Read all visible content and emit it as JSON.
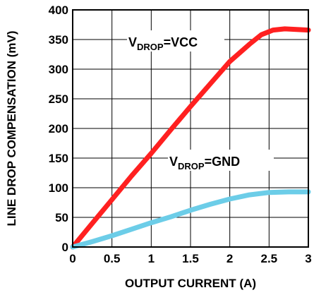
{
  "chart_data": {
    "type": "line",
    "title": "",
    "xlabel": "OUTPUT CURRENT (A)",
    "ylabel": "LINE DROP COMPENSATION (mV)",
    "xlim": [
      0,
      3
    ],
    "ylim": [
      0,
      400
    ],
    "x_ticks": [
      "0",
      "0.5",
      "1",
      "1.5",
      "2",
      "2.5",
      "3"
    ],
    "y_ticks": [
      "0",
      "50",
      "100",
      "150",
      "200",
      "250",
      "300",
      "350",
      "400"
    ],
    "grid": true,
    "series": [
      {
        "name": "VDROP=VCC",
        "color": "#ff2020",
        "x": [
          0,
          0.25,
          0.5,
          0.75,
          1.0,
          1.25,
          1.5,
          1.75,
          2.0,
          2.25,
          2.4,
          2.55,
          2.7,
          2.85,
          3.0
        ],
        "y": [
          0,
          40,
          80,
          120,
          158,
          198,
          237,
          275,
          313,
          342,
          358,
          366,
          368,
          367,
          366
        ]
      },
      {
        "name": "VDROP=GND",
        "color": "#6ccde8",
        "x": [
          0,
          0.25,
          0.5,
          0.75,
          1.0,
          1.25,
          1.5,
          1.75,
          2.0,
          2.25,
          2.5,
          2.75,
          3.0
        ],
        "y": [
          0,
          9,
          19,
          30,
          41,
          51,
          62,
          72,
          81,
          88,
          92,
          93,
          93
        ]
      }
    ],
    "annotations": [
      {
        "label_main": "V",
        "label_sub": "DROP",
        "label_rest": "=VCC",
        "series": 0
      },
      {
        "label_main": "V",
        "label_sub": "DROP",
        "label_rest": "=GND",
        "series": 1
      }
    ]
  }
}
